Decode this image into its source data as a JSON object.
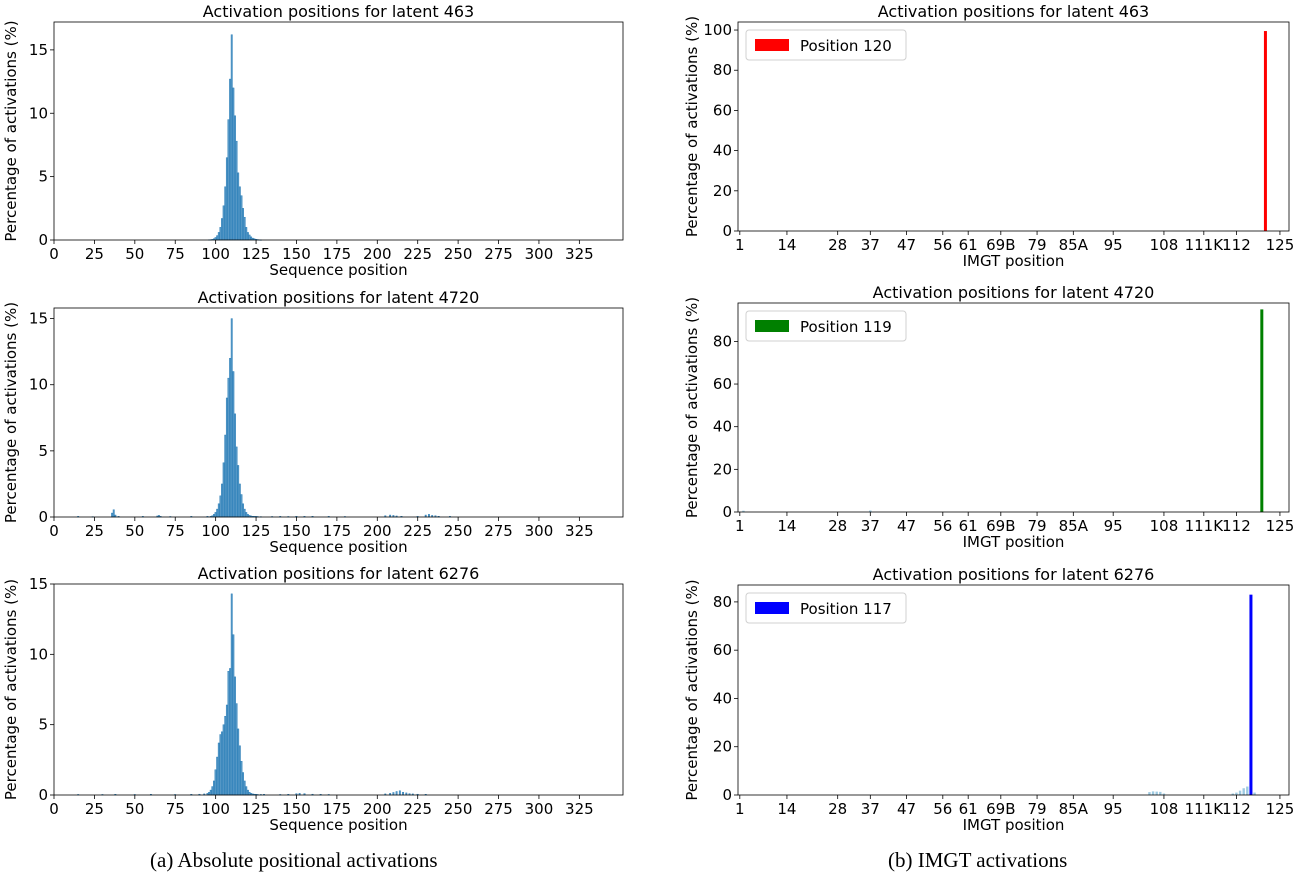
{
  "captions": {
    "a": "(a) Absolute positional activations",
    "b": "(b) IMGT activations"
  },
  "chart_data": [
    {
      "type": "bar",
      "title": "Activation positions for latent 463",
      "xlabel": "Sequence position",
      "ylabel": "Percentage of activations (%)",
      "xlim": [
        0,
        352
      ],
      "ylim": [
        0,
        17.2
      ],
      "xticks": [
        0,
        25,
        50,
        75,
        100,
        125,
        150,
        175,
        200,
        225,
        250,
        275,
        300,
        325
      ],
      "yticks": [
        0,
        5,
        10,
        15
      ],
      "color": "#1f77b4",
      "x": [
        96,
        97,
        98,
        99,
        100,
        101,
        102,
        103,
        104,
        105,
        106,
        107,
        108,
        109,
        110,
        111,
        112,
        113,
        114,
        115,
        116,
        117,
        118,
        119,
        120,
        121,
        122,
        123,
        124,
        125,
        126,
        127,
        128
      ],
      "values": [
        0.02,
        0.03,
        0.05,
        0.1,
        0.2,
        0.35,
        0.6,
        1.0,
        1.7,
        2.7,
        4.2,
        6.5,
        9.5,
        12.7,
        16.2,
        12.0,
        9.8,
        7.8,
        5.3,
        4.2,
        3.5,
        2.5,
        1.8,
        1.0,
        0.6,
        0.4,
        0.25,
        0.15,
        0.1,
        0.06,
        0.04,
        0.02,
        0.01
      ]
    },
    {
      "type": "bar",
      "title": "Activation positions for latent 463",
      "xlabel": "IMGT position",
      "ylabel": "Percentage of activations (%)",
      "xlim": [
        0,
        152
      ],
      "ylim": [
        0,
        104
      ],
      "xticks": [
        "1",
        "14",
        "28",
        "37",
        "47",
        "56",
        "61",
        "69B",
        "79",
        "85A",
        "95",
        "108",
        "111K",
        "112",
        "125"
      ],
      "yticks": [
        0,
        20,
        40,
        60,
        80,
        100
      ],
      "legend": {
        "label": "Position 120",
        "color": "#ff0000",
        "placement": "upper left"
      },
      "highlight": {
        "category_index": 145,
        "value": 99.5,
        "color": "#ff0000"
      },
      "minor": []
    },
    {
      "type": "bar",
      "title": "Activation positions for latent 4720",
      "xlabel": "Sequence position",
      "ylabel": "Percentage of activations (%)",
      "xlim": [
        0,
        352
      ],
      "ylim": [
        0,
        15.8
      ],
      "xticks": [
        0,
        25,
        50,
        75,
        100,
        125,
        150,
        175,
        200,
        225,
        250,
        275,
        300,
        325
      ],
      "yticks": [
        0,
        5,
        10,
        15
      ],
      "color": "#1f77b4",
      "x": [
        15,
        24,
        36,
        37,
        38,
        40,
        55,
        64,
        65,
        66,
        72,
        85,
        95,
        97,
        98,
        99,
        100,
        101,
        102,
        103,
        104,
        105,
        106,
        107,
        108,
        109,
        110,
        111,
        112,
        113,
        114,
        115,
        116,
        117,
        118,
        119,
        120,
        121,
        122,
        123,
        124,
        125,
        126,
        128,
        135,
        140,
        145,
        150,
        155,
        160,
        170,
        180,
        205,
        208,
        210,
        212,
        215,
        225,
        230,
        232,
        234,
        236,
        238,
        245
      ],
      "values": [
        0.05,
        0.03,
        0.3,
        0.55,
        0.15,
        0.05,
        0.05,
        0.08,
        0.12,
        0.05,
        0.04,
        0.05,
        0.05,
        0.05,
        0.1,
        0.2,
        0.35,
        0.6,
        1.0,
        1.6,
        2.5,
        4.1,
        6.2,
        9.0,
        10.5,
        12.0,
        15.0,
        11.0,
        7.8,
        5.3,
        3.9,
        2.5,
        1.7,
        1.0,
        0.6,
        0.35,
        0.2,
        0.12,
        0.08,
        0.06,
        0.05,
        0.05,
        0.04,
        0.03,
        0.04,
        0.05,
        0.04,
        0.06,
        0.05,
        0.06,
        0.05,
        0.04,
        0.1,
        0.15,
        0.12,
        0.08,
        0.06,
        0.05,
        0.15,
        0.2,
        0.12,
        0.1,
        0.06,
        0.05
      ]
    },
    {
      "type": "bar",
      "title": "Activation positions for latent 4720",
      "xlabel": "IMGT position",
      "ylabel": "Percentage of activations (%)",
      "xlim": [
        0,
        152
      ],
      "ylim": [
        0,
        98
      ],
      "xticks": [
        "1",
        "14",
        "28",
        "37",
        "47",
        "56",
        "61",
        "69B",
        "79",
        "85A",
        "95",
        "108",
        "111K",
        "112",
        "125"
      ],
      "yticks": [
        0,
        20,
        40,
        60,
        80
      ],
      "legend": {
        "label": "Position 119",
        "color": "#008000",
        "placement": "upper left"
      },
      "highlight": {
        "category_index": 144,
        "value": 95,
        "color": "#008000"
      },
      "minor": [
        {
          "category_index": 1,
          "value": 0.6
        },
        {
          "category_index": 36,
          "value": 0.7
        }
      ]
    },
    {
      "type": "bar",
      "title": "Activation positions for latent 6276",
      "xlabel": "Sequence position",
      "ylabel": "Percentage of activations (%)",
      "xlim": [
        0,
        352
      ],
      "ylim": [
        0,
        15
      ],
      "xticks": [
        0,
        25,
        50,
        75,
        100,
        125,
        150,
        175,
        200,
        225,
        250,
        275,
        300,
        325
      ],
      "yticks": [
        0,
        5,
        10,
        15
      ],
      "color": "#1f77b4",
      "x": [
        15,
        30,
        38,
        50,
        60,
        75,
        85,
        90,
        93,
        95,
        96,
        97,
        98,
        99,
        100,
        101,
        102,
        103,
        104,
        105,
        106,
        107,
        108,
        109,
        110,
        111,
        112,
        113,
        114,
        115,
        116,
        117,
        118,
        119,
        120,
        121,
        122,
        123,
        124,
        125,
        126,
        128,
        130,
        140,
        145,
        150,
        152,
        155,
        160,
        165,
        170,
        205,
        208,
        210,
        212,
        214,
        216,
        218,
        220,
        222,
        225,
        230
      ],
      "values": [
        0.04,
        0.04,
        0.05,
        0.04,
        0.05,
        0.04,
        0.05,
        0.06,
        0.08,
        0.12,
        0.2,
        0.35,
        0.6,
        1.0,
        1.8,
        2.7,
        3.7,
        4.3,
        4.5,
        5.0,
        5.6,
        6.4,
        8.8,
        9.0,
        14.3,
        11.4,
        8.4,
        6.5,
        4.7,
        3.5,
        2.4,
        1.6,
        1.0,
        0.6,
        0.35,
        0.2,
        0.12,
        0.08,
        0.06,
        0.05,
        0.04,
        0.04,
        0.05,
        0.04,
        0.05,
        0.1,
        0.12,
        0.1,
        0.06,
        0.05,
        0.04,
        0.08,
        0.12,
        0.18,
        0.25,
        0.3,
        0.2,
        0.15,
        0.1,
        0.08,
        0.06,
        0.05
      ]
    },
    {
      "type": "bar",
      "title": "Activation positions for latent 6276",
      "xlabel": "IMGT position",
      "ylabel": "Percentage of activations (%)",
      "xlim": [
        0,
        152
      ],
      "ylim": [
        0,
        87
      ],
      "xticks": [
        "1",
        "14",
        "28",
        "37",
        "47",
        "56",
        "61",
        "69B",
        "79",
        "85A",
        "95",
        "108",
        "111K",
        "112",
        "125"
      ],
      "yticks": [
        0,
        20,
        40,
        60,
        80
      ],
      "legend": {
        "label": "Position 117",
        "color": "#0000ff",
        "placement": "upper left"
      },
      "highlight": {
        "category_index": 141,
        "value": 83,
        "color": "#0000ff"
      },
      "minor": [
        {
          "category_index": 113,
          "value": 1.2
        },
        {
          "category_index": 114,
          "value": 1.5
        },
        {
          "category_index": 115,
          "value": 1.4
        },
        {
          "category_index": 116,
          "value": 1.3
        },
        {
          "category_index": 117,
          "value": 0.6
        },
        {
          "category_index": 136,
          "value": 0.6
        },
        {
          "category_index": 137,
          "value": 1.0
        },
        {
          "category_index": 138,
          "value": 1.8
        },
        {
          "category_index": 139,
          "value": 2.8
        },
        {
          "category_index": 140,
          "value": 3.5
        },
        {
          "category_index": 142,
          "value": 1.0
        }
      ]
    }
  ]
}
